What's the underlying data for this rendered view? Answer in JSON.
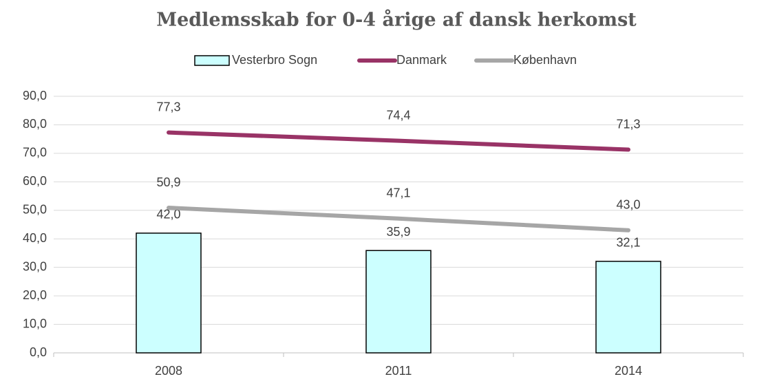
{
  "chart_data": {
    "type": "bar",
    "title": "Medlemsskab for 0-4 årige af dansk herkomst",
    "categories": [
      "2008",
      "2011",
      "2014"
    ],
    "series": [
      {
        "name": "Vesterbro Sogn",
        "type": "bar",
        "color": "#ccffff",
        "values": [
          42.0,
          35.9,
          32.1
        ],
        "value_labels": [
          "42,0",
          "35,9",
          "32,1"
        ]
      },
      {
        "name": "Danmark",
        "type": "line",
        "color": "#993366",
        "values": [
          77.3,
          74.4,
          71.3
        ],
        "value_labels": [
          "77,3",
          "74,4",
          "71,3"
        ]
      },
      {
        "name": "København",
        "type": "line",
        "color": "#a6a6a6",
        "values": [
          50.9,
          47.1,
          43.0
        ],
        "value_labels": [
          "50,9",
          "47,1",
          "43,0"
        ]
      }
    ],
    "ylim": [
      0,
      90
    ],
    "yticks": [
      {
        "value": 0,
        "label": "0,0"
      },
      {
        "value": 10,
        "label": "10,0"
      },
      {
        "value": 20,
        "label": "20,0"
      },
      {
        "value": 30,
        "label": "30,0"
      },
      {
        "value": 40,
        "label": "40,0"
      },
      {
        "value": 50,
        "label": "50,0"
      },
      {
        "value": 60,
        "label": "60,0"
      },
      {
        "value": 70,
        "label": "70,0"
      },
      {
        "value": 80,
        "label": "80,0"
      },
      {
        "value": 90,
        "label": "90,0"
      }
    ],
    "grid": true,
    "legend": "top"
  }
}
